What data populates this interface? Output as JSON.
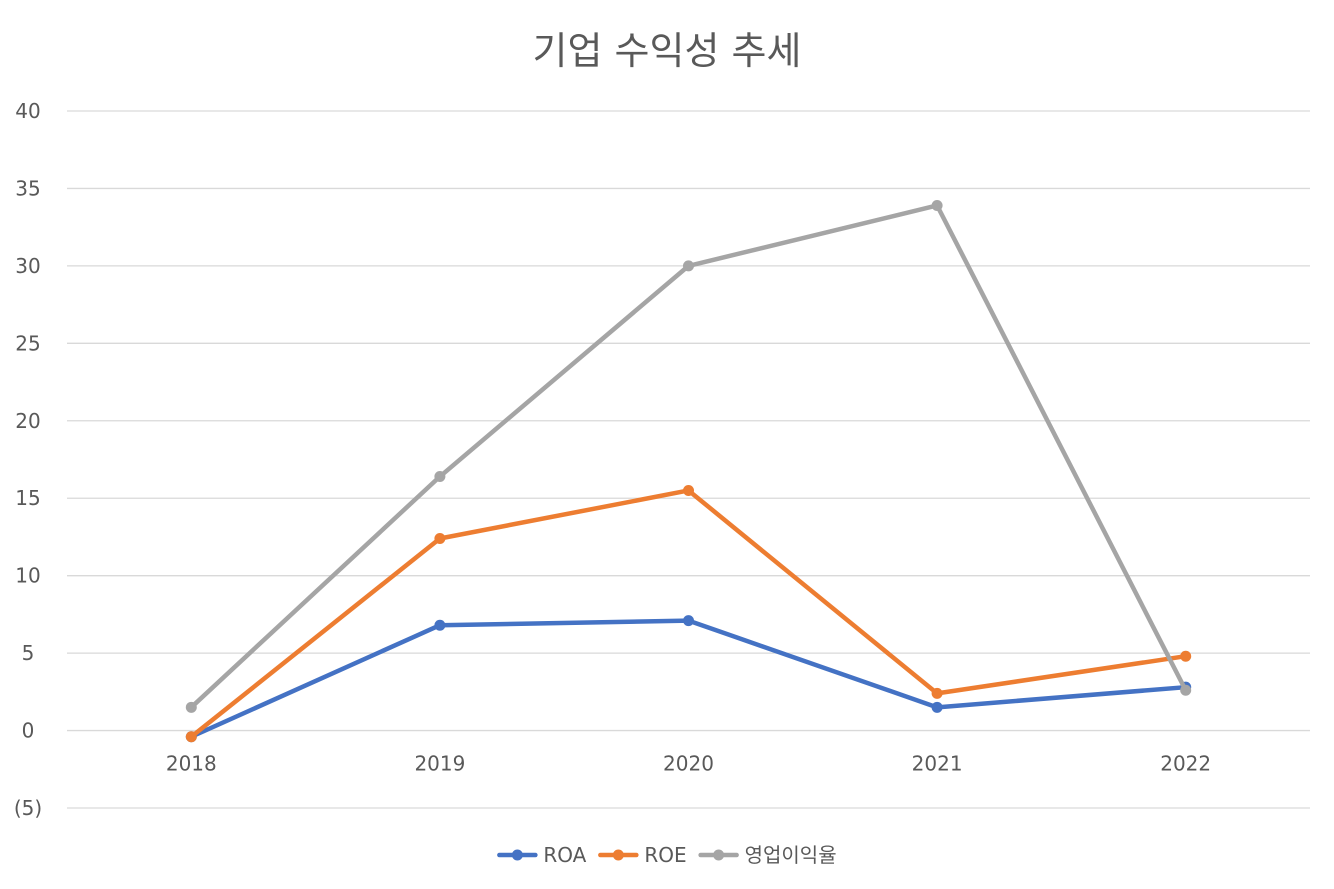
{
  "chart_data": {
    "type": "line",
    "title": "기업 수익성 추세",
    "xlabel": "",
    "ylabel": "",
    "categories": [
      "2018",
      "2019",
      "2020",
      "2021",
      "2022"
    ],
    "ylim": [
      -5,
      40
    ],
    "yticks": [
      {
        "value": 40,
        "label": "40"
      },
      {
        "value": 35,
        "label": "35"
      },
      {
        "value": 30,
        "label": "30"
      },
      {
        "value": 25,
        "label": "25"
      },
      {
        "value": 20,
        "label": "20"
      },
      {
        "value": 15,
        "label": "15"
      },
      {
        "value": 10,
        "label": "10"
      },
      {
        "value": 5,
        "label": "5"
      },
      {
        "value": 0,
        "label": "0"
      },
      {
        "value": -5,
        "label": "(5)"
      }
    ],
    "grid": true,
    "legend_position": "bottom",
    "series": [
      {
        "name": "ROA",
        "color": "#4472c4",
        "values": [
          -0.4,
          6.8,
          7.1,
          1.5,
          2.8
        ]
      },
      {
        "name": "ROE",
        "color": "#ed7d31",
        "values": [
          -0.4,
          12.4,
          15.5,
          2.4,
          4.8
        ]
      },
      {
        "name": "영업이익율",
        "color": "#a5a5a5",
        "values": [
          1.5,
          16.4,
          30.0,
          33.9,
          2.6
        ]
      }
    ]
  }
}
